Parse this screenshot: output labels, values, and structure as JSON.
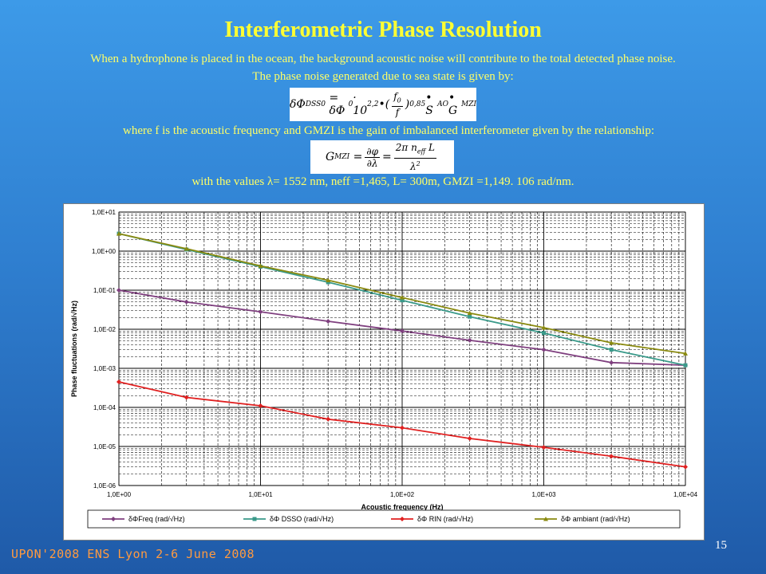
{
  "slide": {
    "title": "Interferometric Phase Resolution",
    "para1": "When a hydrophone is placed in the ocean, the background acoustic noise will contribute to the total detected  phase  noise.",
    "para2": "The phase noise generated due to sea state is given by:",
    "para3": "where f is  the acoustic frequency and GMZI is the gain of imbalanced interferometer given by the relationship:",
    "para4": "with the values λ= 1552 nm, neff =1,465, L= 300m, GMZI =1,149. 106 rad/nm.",
    "footer": "UPON'2008 ENS Lyon 2-6 June 2008",
    "page_number": "15"
  },
  "formula1": {
    "lhs": "δΦ",
    "lhs_sub": "DSS0",
    "rhs_a": "= δΦ",
    "rhs_a_sub": "0",
    "times": "· 10",
    "exp1": "2,2",
    "dot": "•(",
    "f0": "f",
    "f0_sub": "0",
    "f": "f",
    "close": ")",
    "exp2": "0,85",
    "dot2": "• S",
    "sao": "AO",
    "dot3": "• G",
    "mzi": "MZI"
  },
  "formula2": {
    "lhs": "G",
    "lhs_sub": "MZI",
    "eq1": "=",
    "num1": "∂φ",
    "den1": "∂λ",
    "eq2": "=",
    "num2": "2π n",
    "num2_sub": "eff",
    "num2_tail": " L",
    "den2": "λ",
    "den2_sup": "2"
  },
  "chart_data": {
    "type": "line",
    "title": "",
    "xlabel": "Acoustic frequency (Hz)",
    "ylabel": "Phase fluctuations (rad/√Hz)",
    "x_scale": "log",
    "y_scale": "log",
    "xlim": [
      1,
      10000
    ],
    "ylim": [
      1e-06,
      10
    ],
    "grid": true,
    "legend_position": "bottom",
    "x_ticks": [
      "1,0E+00",
      "1,0E+01",
      "1,0E+02",
      "1,0E+03",
      "1,0E+04"
    ],
    "y_ticks": [
      "1,0E+01",
      "1,0E+00",
      "1,0E-01",
      "1,0E-02",
      "1,0E-03",
      "1,0E-04",
      "1,0E-05",
      "1,0E-06"
    ],
    "x": [
      1,
      3,
      10,
      30,
      100,
      300,
      1000,
      3000,
      10000
    ],
    "series": [
      {
        "name": "δΦFreq (rad/√Hz)",
        "color": "#7f3f7f",
        "values": [
          0.1,
          0.05,
          0.028,
          0.016,
          0.009,
          0.0052,
          0.003,
          0.0014,
          0.0012
        ]
      },
      {
        "name": "δΦ DSSO (rad/√Hz)",
        "color": "#3a9a8a",
        "values": [
          2.8,
          1.1,
          0.4,
          0.16,
          0.055,
          0.021,
          0.008,
          0.003,
          0.0012
        ]
      },
      {
        "name": "δΦ RIN (rad/√Hz)",
        "color": "#e02020",
        "values": [
          0.00045,
          0.00018,
          0.00011,
          5e-05,
          3e-05,
          1.6e-05,
          9.5e-06,
          5.6e-06,
          3e-06
        ]
      },
      {
        "name": "δΦ ambiant (rad/√Hz)",
        "color": "#8a8a10",
        "values": [
          2.8,
          1.15,
          0.42,
          0.18,
          0.065,
          0.026,
          0.011,
          0.0045,
          0.0024
        ]
      }
    ]
  }
}
